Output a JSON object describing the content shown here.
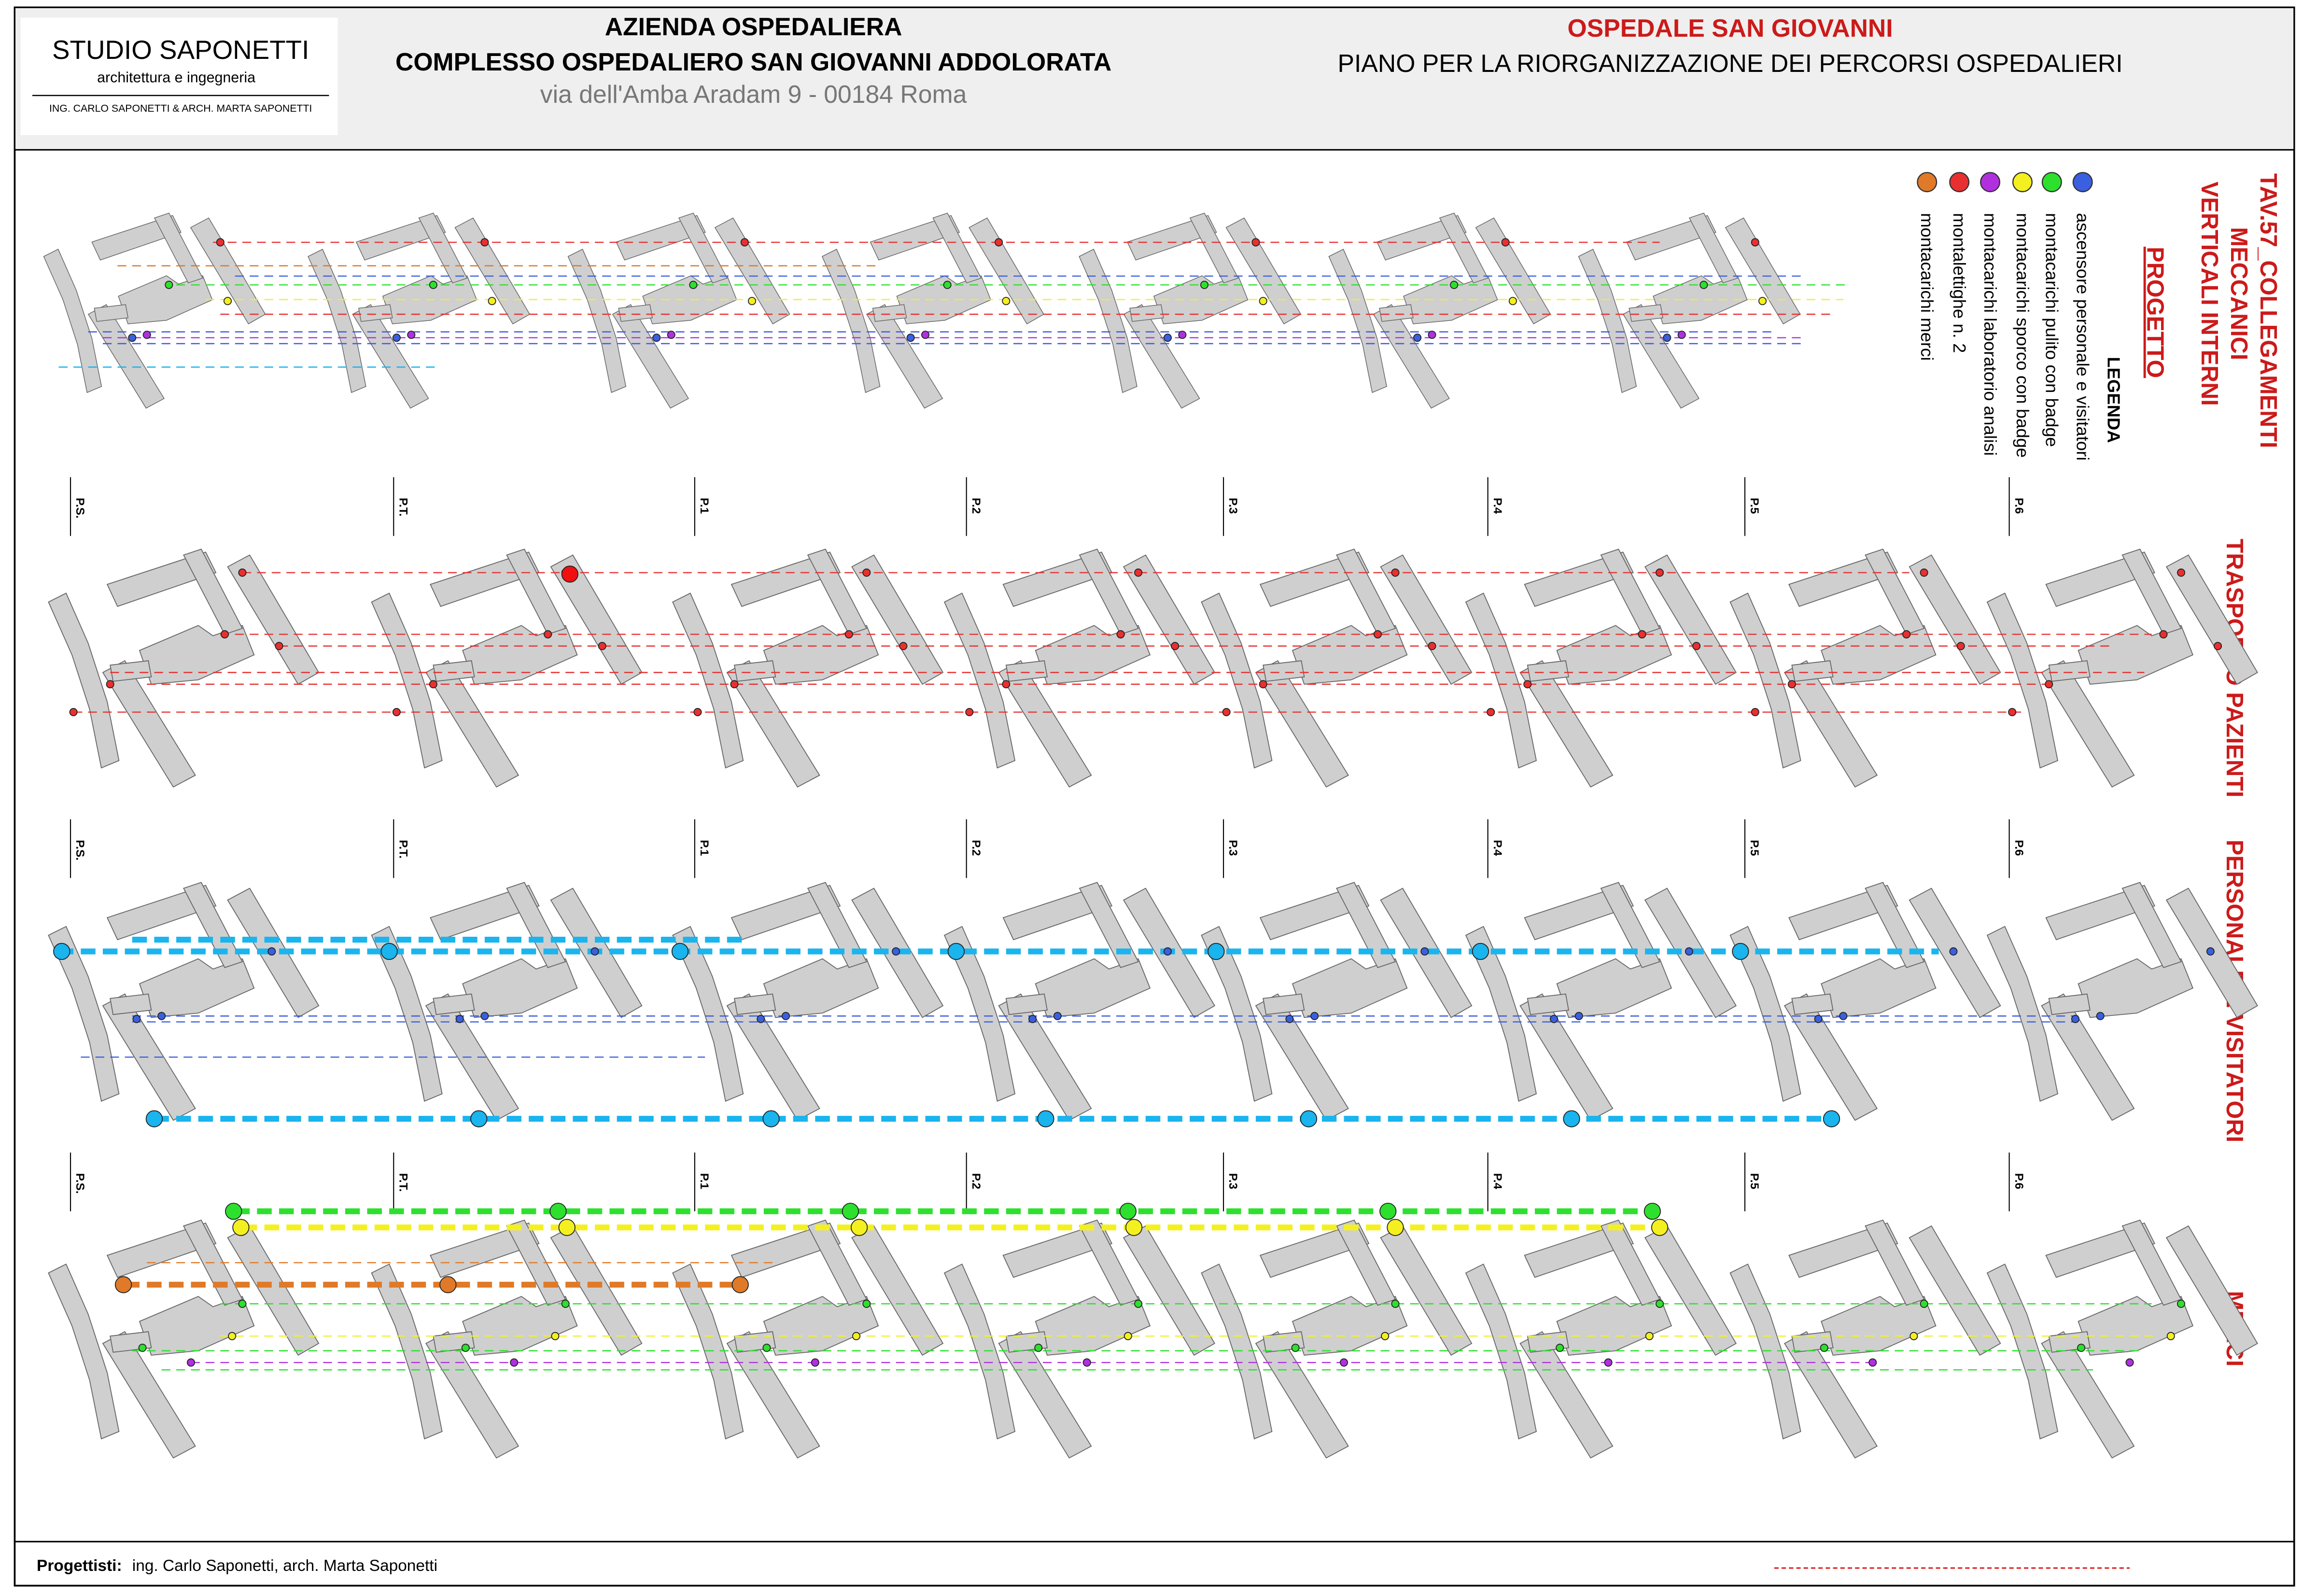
{
  "header": {
    "logo": {
      "name": "STUDIO SAPONETTI",
      "tagline": "architettura e ingegneria",
      "authors": "ING. CARLO SAPONETTI & ARCH. MARTA SAPONETTI"
    },
    "client": {
      "line1": "AZIENDA OSPEDALIERA",
      "line2": "COMPLESSO OSPEDALIERO SAN GIOVANNI ADDOLORATA",
      "address": "via dell'Amba Aradam 9 - 00184 Roma"
    },
    "project": {
      "title": "OSPEDALE SAN GIOVANNI",
      "subtitle": "PIANO PER LA RIORGANIZZAZIONE DEI PERCORSI OSPEDALIERI"
    }
  },
  "sheet": {
    "title_lines": [
      "TAV.57_COLLEGAMENTI",
      "MECCANICI",
      "VERTICALI INTERNI"
    ],
    "phase": "PROGETTO"
  },
  "legend": {
    "title": "LEGENDA",
    "items": [
      {
        "label": "ascensore personale e visitatori",
        "color": "#3a5fe0"
      },
      {
        "label": "montacarichi pulito con badge",
        "color": "#2ee02e"
      },
      {
        "label": "montacarichi sporco con badge",
        "color": "#f4f020"
      },
      {
        "label": "montacarichi laboratorio analisi",
        "color": "#b030e0"
      },
      {
        "label": "montalettighe n. 2",
        "color": "#e83030"
      },
      {
        "label": "montacarichi merci",
        "color": "#e07a28"
      }
    ]
  },
  "sections": [
    "TRASPORTO PAZIENTI",
    "PERSONALE E VISITATORI",
    "MERCI"
  ],
  "floors": [
    "P.S.",
    "P.T.",
    "P.1",
    "P.2",
    "P.3",
    "P.4",
    "P.5",
    "P.6"
  ],
  "footer": {
    "label": "Progettisti:",
    "names": "ing. Carlo Saponetti, arch. Marta Saponetti"
  }
}
